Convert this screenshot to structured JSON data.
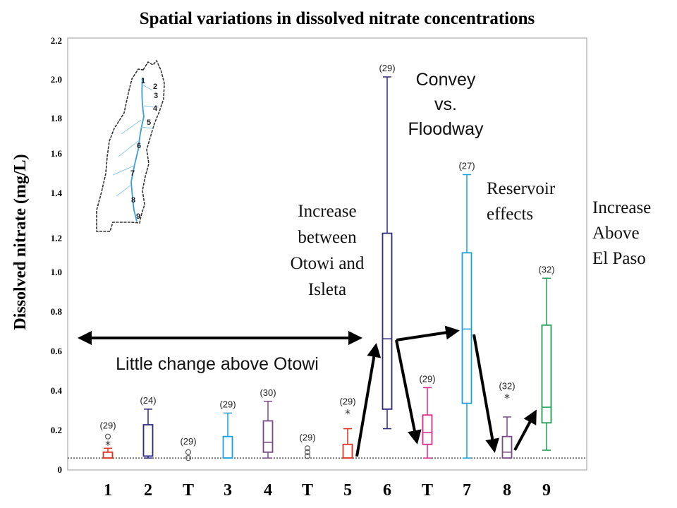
{
  "chart_data": {
    "type": "box",
    "title": "Spatial variations in dissolved nitrate concentrations",
    "ylabel": "Dissolved nitrate (mg/L)",
    "ylim": [
      0,
      2.2
    ],
    "yticks": [
      "0",
      "0.2",
      "0.4",
      "0.6",
      "0.8",
      "1.0",
      "1.2",
      "1.4",
      "1.6",
      "1.8",
      "2.0",
      "2.2"
    ],
    "ytick_values": [
      0,
      0.2,
      0.4,
      0.6,
      0.8,
      1.0,
      1.2,
      1.4,
      1.6,
      1.8,
      2.0,
      2.2
    ],
    "categories": [
      "1",
      "2",
      "T",
      "3",
      "4",
      "T",
      "5",
      "6",
      "T",
      "7",
      "8",
      "9"
    ],
    "detection_limit": 0.05,
    "boxes": [
      {
        "category": "1",
        "count": "(29)",
        "color": "#e0311c",
        "min": 0.05,
        "q1": 0.05,
        "median": 0.05,
        "q3": 0.08,
        "max": 0.1,
        "stars": [
          0.12
        ],
        "circles": [
          0.16
        ]
      },
      {
        "category": "2",
        "count": "(24)",
        "color": "#2e2a7a",
        "min": 0.05,
        "q1": 0.06,
        "median": 0.06,
        "q3": 0.22,
        "max": 0.3,
        "stars": [],
        "circles": []
      },
      {
        "category": "T",
        "count": "(29)",
        "color": "#777777",
        "min": null,
        "q1": null,
        "median": null,
        "q3": null,
        "max": null,
        "stars": [],
        "circles": [
          0.08,
          0.05
        ]
      },
      {
        "category": "3",
        "count": "(29)",
        "color": "#1aa0dc",
        "min": 0.05,
        "q1": 0.05,
        "median": 0.05,
        "q3": 0.16,
        "max": 0.28,
        "stars": [],
        "circles": []
      },
      {
        "category": "4",
        "count": "(30)",
        "color": "#7a4a86",
        "min": 0.05,
        "q1": 0.08,
        "median": 0.13,
        "q3": 0.24,
        "max": 0.34,
        "stars": [],
        "circles": []
      },
      {
        "category": "T",
        "count": "(29)",
        "color": "#777777",
        "min": null,
        "q1": null,
        "median": null,
        "q3": null,
        "max": null,
        "stars": [],
        "circles": [
          0.1,
          0.08,
          0.06
        ]
      },
      {
        "category": "5",
        "count": "(29)",
        "color": "#e0311c",
        "min": 0.05,
        "q1": 0.05,
        "median": 0.05,
        "q3": 0.12,
        "max": 0.2,
        "stars": [
          0.28
        ],
        "circles": []
      },
      {
        "category": "6",
        "count": "(29)",
        "color": "#2e2a7a",
        "min": 0.2,
        "q1": 0.3,
        "median": 0.66,
        "q3": 1.2,
        "max": 2.0,
        "stars": [],
        "circles": []
      },
      {
        "category": "T",
        "count": "(29)",
        "color": "#d62a86",
        "min": 0.05,
        "q1": 0.12,
        "median": 0.18,
        "q3": 0.27,
        "max": 0.41,
        "stars": [],
        "circles": []
      },
      {
        "category": "7",
        "count": "(27)",
        "color": "#1aa0dc",
        "min": 0.05,
        "q1": 0.33,
        "median": 0.71,
        "q3": 1.1,
        "max": 1.5,
        "stars": [],
        "circles": []
      },
      {
        "category": "8",
        "count": "(32)",
        "color": "#7a4a86",
        "min": 0.05,
        "q1": 0.05,
        "median": 0.08,
        "q3": 0.16,
        "max": 0.26,
        "stars": [
          0.36
        ],
        "circles": []
      },
      {
        "category": "9",
        "count": "(32)",
        "color": "#1e9e55",
        "min": 0.09,
        "q1": 0.23,
        "median": 0.31,
        "q3": 0.73,
        "max": 0.97,
        "stars": [],
        "circles": []
      }
    ],
    "annotations": {
      "otowi": "Little change above Otowi",
      "increase_lines": [
        "Increase",
        "between",
        "Otowi and",
        "Isleta"
      ],
      "convey_lines": [
        "Convey",
        "vs.",
        "Floodway"
      ],
      "reservoir_lines": [
        "Reservoir",
        "effects"
      ],
      "elpaso_lines": [
        "Increase",
        "Above",
        "El Paso"
      ]
    },
    "map_labels": [
      "1",
      "2",
      "3",
      "4",
      "5",
      "6",
      "7",
      "8",
      "9"
    ]
  }
}
